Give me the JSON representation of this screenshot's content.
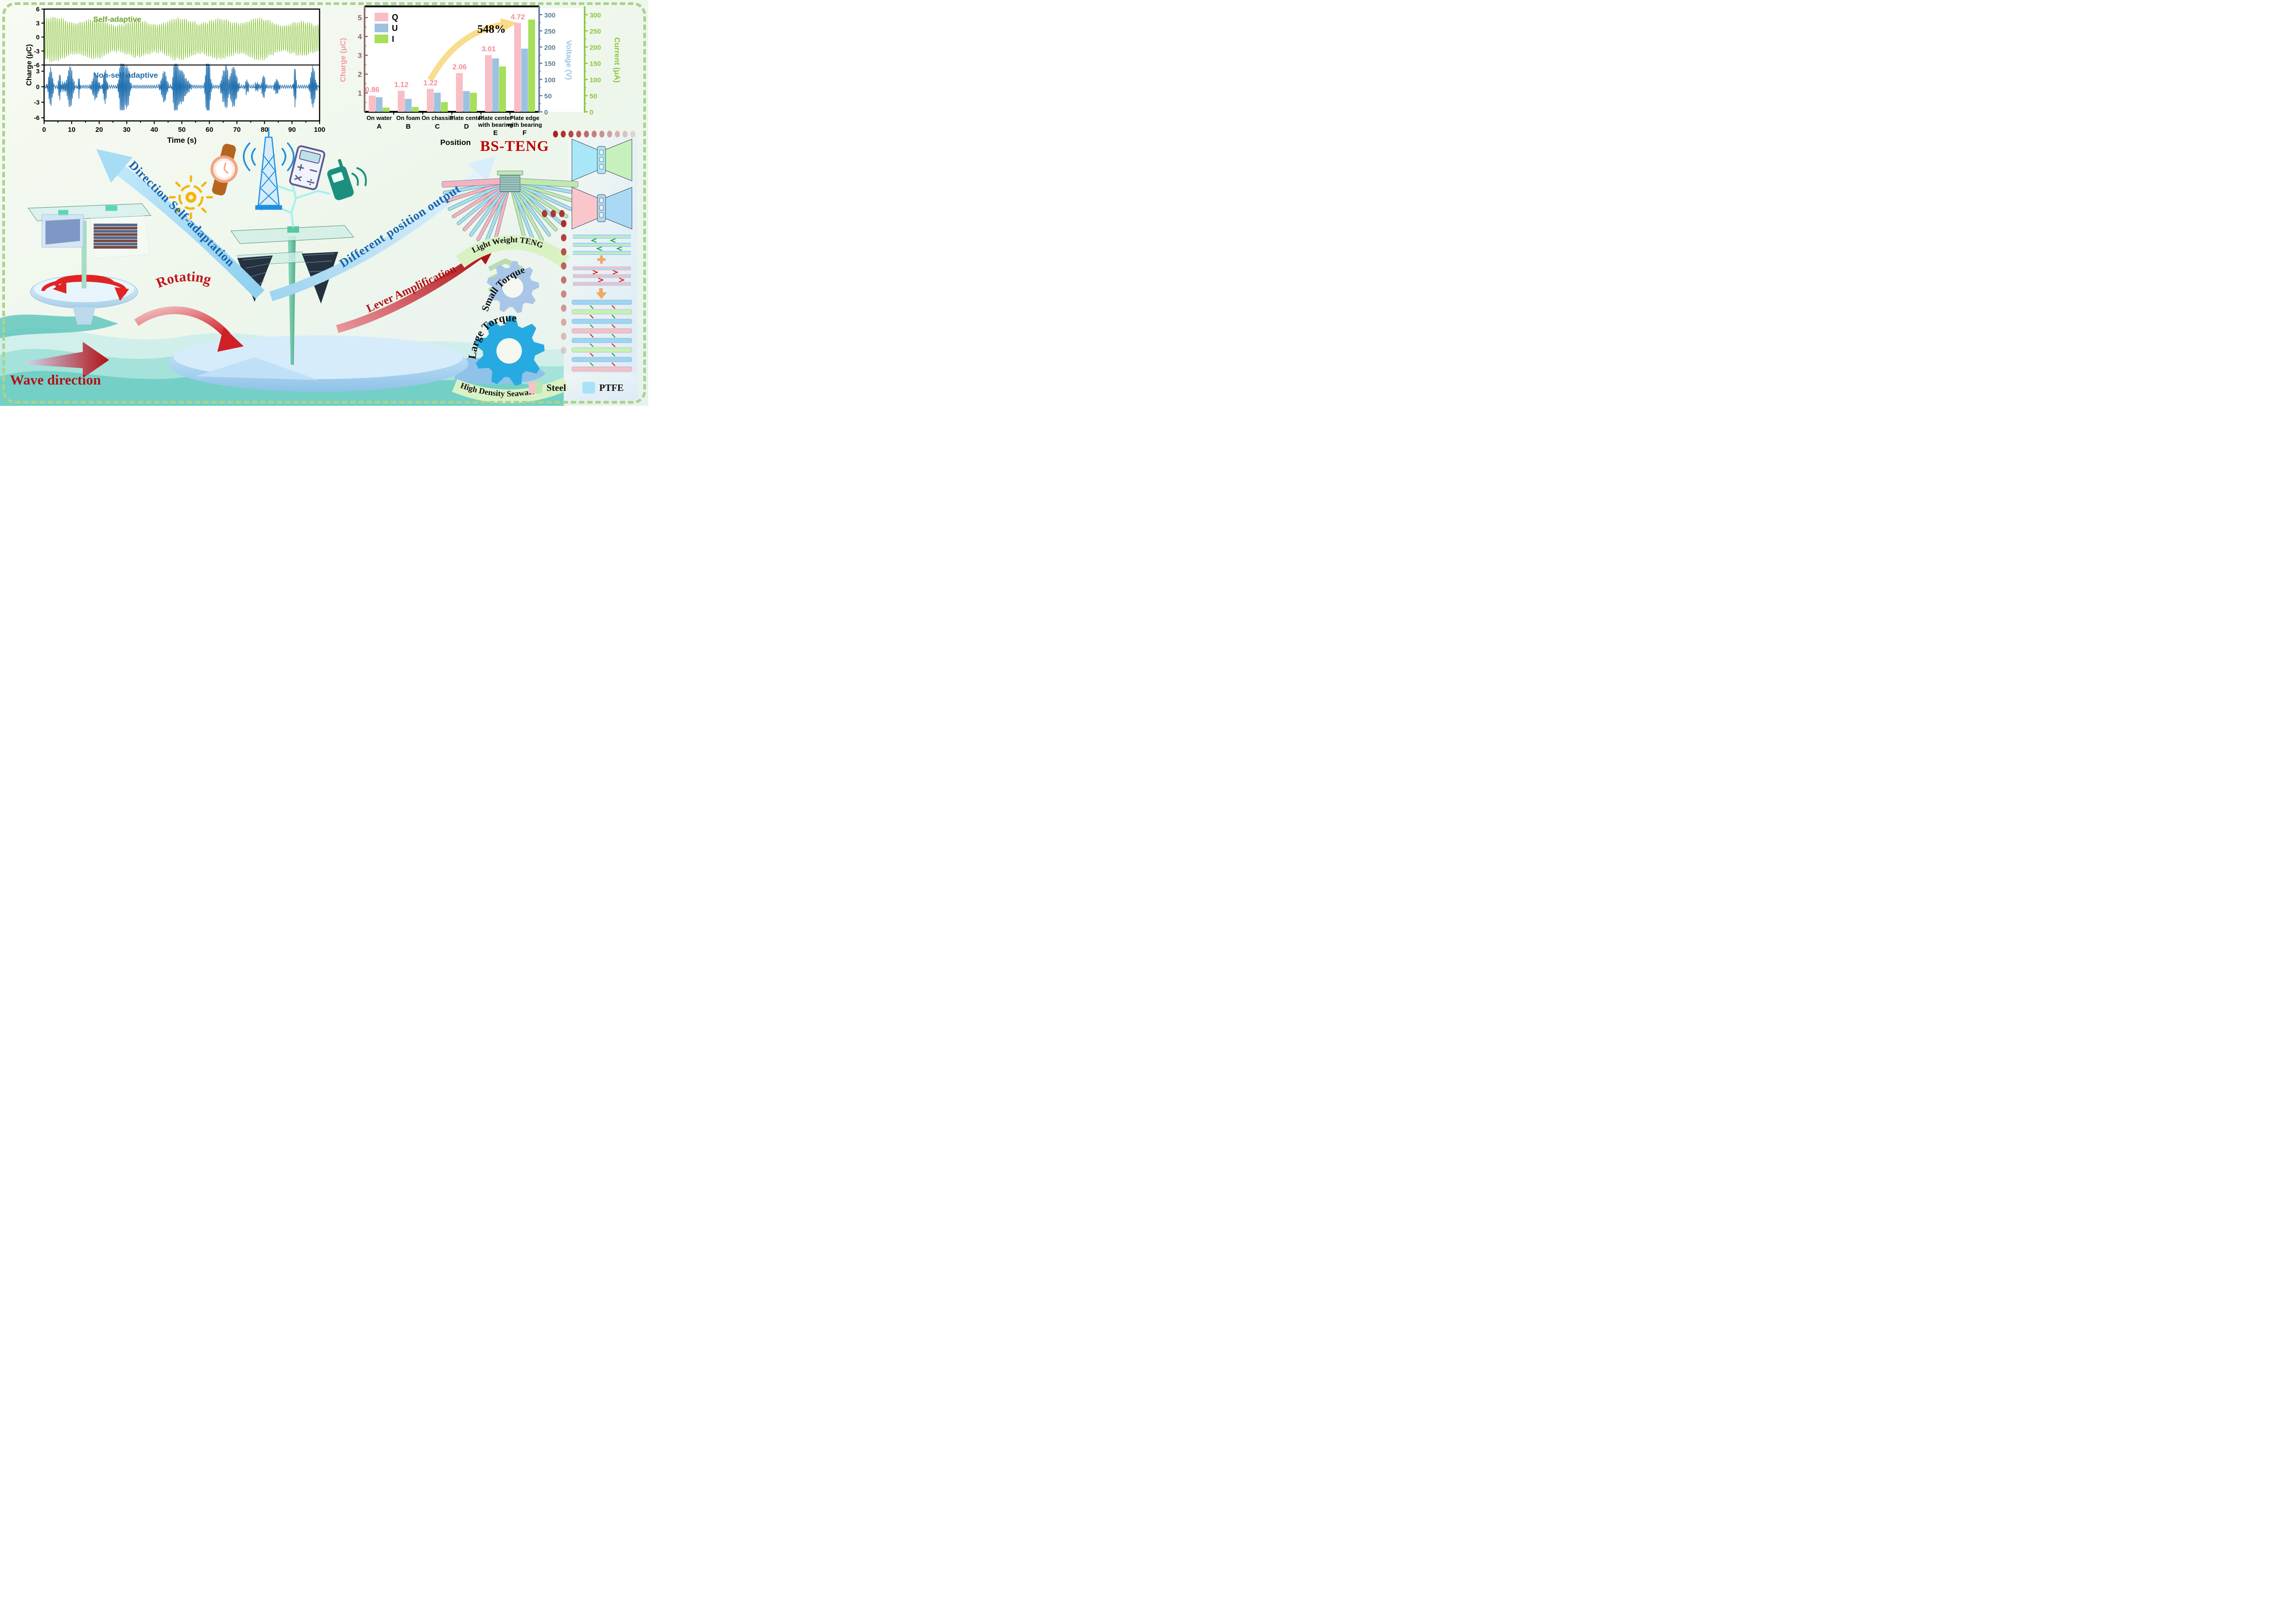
{
  "labels": {
    "bs_teng": "BS-TENG",
    "rotating": "Rotating",
    "wave_direction": "Wave direction",
    "direction_self_adaptation": "Direction Self-adaptation",
    "different_position_output": "Different position output",
    "lever_amplification": "Lever Amplification",
    "light_weight_teng": "Light Weight TENG",
    "small_torque": "Small Torque",
    "large_torque": "Large Torque",
    "high_density_seawater": "High Density Seawater"
  },
  "legend": {
    "steel": "Steel",
    "ptfe": "PTFE"
  },
  "icons": [
    "sun-gear-icon",
    "wristwatch-icon",
    "radio-tower-icon",
    "calculator-icon",
    "mobile-phone-icon"
  ],
  "colors": {
    "steel_pink": "#f4b3c0",
    "steel_green": "#bfe9b0",
    "ptfe_blue": "#a5dff0",
    "accent_red": "#c0161c",
    "accent_blue": "#1563ae",
    "annotation_yellow": "#fadb86",
    "border_green": "#a8d48e",
    "dot_red": "#a82424",
    "gear_light_blue": "#a9c6e8",
    "gear_cyan": "#27aae1",
    "banner_green": "#d9f2c4"
  },
  "chart_data": [
    {
      "type": "line",
      "title": "",
      "xlabel": "Time (s)",
      "ylabel": "Charge (μC)",
      "xlim": [
        0,
        100
      ],
      "xticks": [
        0,
        10,
        20,
        30,
        40,
        50,
        60,
        70,
        80,
        90,
        100
      ],
      "grid": false,
      "subplots": [
        {
          "label": "Self-adaptive",
          "color": "#8dc63f",
          "label_color": "#6da32d",
          "ylim": [
            -6,
            6
          ],
          "yticks": [
            6,
            3,
            0,
            -3,
            -6
          ],
          "waveform": "continuous regular oscillation ~1.3 Hz for 0-100 s",
          "typical_peak": 3.8,
          "typical_trough": -4.6,
          "max_peak": 4.5,
          "min_trough": -5.8
        },
        {
          "label": "Non-self-adaptive",
          "color": "#1b6cad",
          "label_color": "#1b6cad",
          "ylim": [
            -6.6,
            4.2
          ],
          "yticks": [
            3,
            0,
            -3,
            -6
          ],
          "waveform": "intermittent irregular bursts around 0 for 0-100 s",
          "typical_peak": 2.5,
          "max_peak": 4.4,
          "min_trough": -3.6
        }
      ]
    },
    {
      "type": "bar",
      "xlabel": "Position",
      "annotation": "548%",
      "legend_entries": [
        "Q",
        "U",
        "I"
      ],
      "legend_position": "upper left",
      "categories": [
        {
          "line1": "On water",
          "line2": "",
          "letter": "A"
        },
        {
          "line1": "On foam",
          "line2": "",
          "letter": "B"
        },
        {
          "line1": "On chassis",
          "line2": "",
          "letter": "C"
        },
        {
          "line1": "Plate center",
          "line2": "",
          "letter": "D"
        },
        {
          "line1": "Plate center",
          "line2": "with bearing",
          "letter": "E"
        },
        {
          "line1": "Plate edge",
          "line2": "with bearing",
          "letter": "F"
        }
      ],
      "series": [
        {
          "name": "Q",
          "axis": "charge",
          "unit": "μC",
          "color": "#f9bec5",
          "values": [
            0.86,
            1.12,
            1.22,
            2.06,
            3.01,
            4.72
          ],
          "value_labels": [
            "0.86",
            "1.12",
            "1.22",
            "2.06",
            "3.01",
            "4.72"
          ]
        },
        {
          "name": "U",
          "axis": "voltage",
          "unit": "V",
          "color": "#9cc2e0",
          "values": [
            45,
            40,
            59,
            64,
            165,
            195
          ]
        },
        {
          "name": "I",
          "axis": "current",
          "unit": "μA",
          "color": "#a6df5a",
          "values": [
            13,
            15,
            30,
            59,
            140,
            285
          ]
        }
      ],
      "axes": {
        "charge": {
          "label": "Charge (μC)",
          "range": [
            0,
            5.5
          ],
          "ticks": [
            1,
            2,
            3,
            4,
            5
          ],
          "spine_color": "#8b6262",
          "tick_color": "#8b6262",
          "label_color": "#f59aa5"
        },
        "voltage": {
          "label": "Voltage (V)",
          "range": [
            0,
            320
          ],
          "ticks": [
            0,
            50,
            100,
            150,
            200,
            250,
            300
          ],
          "spine_color": "#5c7f99",
          "tick_color": "#567d96",
          "label_color": "#9cc6e6"
        },
        "current": {
          "label": "Current (μA)",
          "range": [
            0,
            320
          ],
          "ticks": [
            0,
            50,
            100,
            150,
            200,
            250,
            300
          ],
          "spine_color": "#8cc63f",
          "tick_color": "#8cc63f",
          "label_color": "#8cc63f"
        }
      }
    }
  ]
}
